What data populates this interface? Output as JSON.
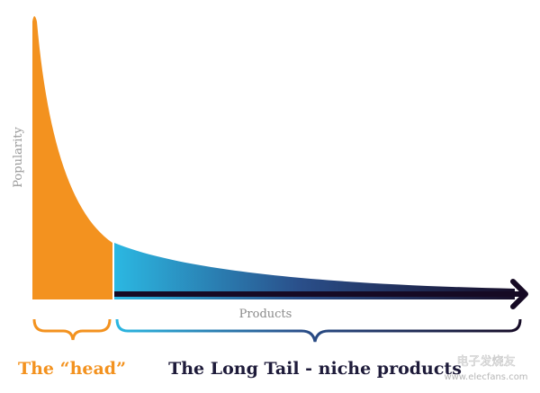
{
  "axis": {
    "y_label": "Popularity",
    "x_label": "Products"
  },
  "labels": {
    "head": "The “head”",
    "tail": "The Long Tail - niche products"
  },
  "watermark": {
    "brand": "电子发烧友",
    "url": "www.elecfans.com"
  }
}
